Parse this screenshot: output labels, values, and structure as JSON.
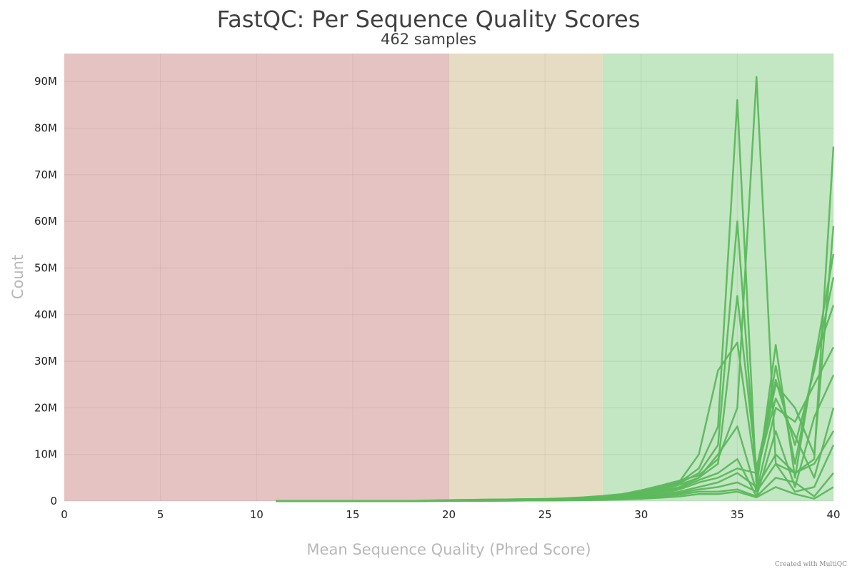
{
  "chart_data": {
    "type": "line",
    "title": "FastQC: Per Sequence Quality Scores",
    "subtitle": "462 samples",
    "xlabel": "Mean Sequence Quality (Phred Score)",
    "ylabel": "Count",
    "xlim": [
      0,
      40
    ],
    "ylim": [
      0,
      96000000
    ],
    "x_ticks": [
      "0",
      "5",
      "10",
      "15",
      "20",
      "25",
      "30",
      "35",
      "40"
    ],
    "x_tick_values": [
      0,
      5,
      10,
      15,
      20,
      25,
      30,
      35,
      40
    ],
    "y_ticks": [
      "0",
      "10M",
      "20M",
      "30M",
      "40M",
      "50M",
      "60M",
      "70M",
      "80M",
      "90M"
    ],
    "y_tick_values": [
      0,
      10000000,
      20000000,
      30000000,
      40000000,
      50000000,
      60000000,
      70000000,
      80000000,
      90000000
    ],
    "grid": true,
    "legend": "none",
    "series_count": 462,
    "line_color": "#5cb85c",
    "bands": [
      {
        "from": 0,
        "to": 20,
        "color": "#e6c3c3",
        "status": "fail"
      },
      {
        "from": 20,
        "to": 28,
        "color": "#e6dcc3",
        "status": "warn"
      },
      {
        "from": 28,
        "to": 40,
        "color": "#c3e6c3",
        "status": "pass"
      }
    ],
    "x": [
      11,
      12,
      13,
      14,
      15,
      16,
      17,
      18,
      19,
      20,
      21,
      22,
      23,
      24,
      25,
      26,
      27,
      28,
      29,
      30,
      31,
      32,
      33,
      34,
      35,
      36,
      37,
      38,
      39,
      40
    ],
    "series": [
      {
        "values": [
          0,
          0,
          0,
          0,
          0,
          0,
          0,
          0,
          100000,
          200000,
          250000,
          300000,
          350000,
          400000,
          450000,
          600000,
          800000,
          1100000,
          1500000,
          2300000,
          3300000,
          4400000,
          5500000,
          9000000,
          20000000,
          91000000,
          8000000,
          6000000,
          9000000,
          76000000
        ]
      },
      {
        "values": [
          0,
          0,
          0,
          0,
          0,
          0,
          0,
          0,
          100000,
          200000,
          250000,
          300000,
          350000,
          400000,
          450000,
          550000,
          700000,
          900000,
          1300000,
          2000000,
          3000000,
          4200000,
          10000000,
          28000000,
          34000000,
          5000000,
          25000000,
          20000000,
          10000000,
          59000000
        ]
      },
      {
        "values": [
          0,
          0,
          0,
          0,
          0,
          0,
          0,
          0,
          50000,
          150000,
          200000,
          250000,
          300000,
          350000,
          400000,
          500000,
          650000,
          850000,
          1200000,
          1900000,
          2800000,
          4000000,
          7000000,
          16000000,
          86000000,
          3000000,
          33500000,
          5000000,
          30000000,
          42000000
        ]
      },
      {
        "values": [
          0,
          0,
          0,
          0,
          0,
          0,
          0,
          0,
          50000,
          100000,
          150000,
          200000,
          250000,
          300000,
          350000,
          450000,
          600000,
          800000,
          1100000,
          1700000,
          2500000,
          3800000,
          6000000,
          12000000,
          60000000,
          4000000,
          29000000,
          8000000,
          29500000,
          53000000
        ]
      },
      {
        "values": [
          0,
          0,
          0,
          0,
          0,
          0,
          0,
          0,
          50000,
          100000,
          150000,
          200000,
          250000,
          300000,
          350000,
          400000,
          550000,
          700000,
          1000000,
          1500000,
          2200000,
          3500000,
          5000000,
          8000000,
          44000000,
          7000000,
          26000000,
          12000000,
          28000000,
          48000000
        ]
      },
      {
        "values": [
          0,
          0,
          0,
          0,
          0,
          0,
          0,
          0,
          50000,
          100000,
          120000,
          150000,
          200000,
          250000,
          300000,
          350000,
          450000,
          600000,
          900000,
          1300000,
          2000000,
          3000000,
          5000000,
          10000000,
          16000000,
          2000000,
          20000000,
          17000000,
          25000000,
          33000000
        ]
      },
      {
        "values": [
          0,
          0,
          0,
          0,
          0,
          0,
          0,
          0,
          30000,
          80000,
          100000,
          120000,
          150000,
          200000,
          250000,
          300000,
          400000,
          550000,
          800000,
          1200000,
          1800000,
          2800000,
          4500000,
          6000000,
          9000000,
          1000000,
          15000000,
          3000000,
          18000000,
          27000000
        ]
      },
      {
        "values": [
          0,
          0,
          0,
          0,
          0,
          0,
          0,
          0,
          30000,
          80000,
          100000,
          120000,
          150000,
          200000,
          250000,
          300000,
          400000,
          500000,
          700000,
          1000000,
          1500000,
          2500000,
          4000000,
          5000000,
          7000000,
          6000000,
          22000000,
          14000000,
          5000000,
          20000000
        ]
      },
      {
        "values": [
          0,
          0,
          0,
          0,
          0,
          0,
          0,
          0,
          20000,
          50000,
          80000,
          100000,
          120000,
          150000,
          200000,
          250000,
          300000,
          400000,
          600000,
          900000,
          1300000,
          2000000,
          3000000,
          4000000,
          6000000,
          3000000,
          10000000,
          6000000,
          8000000,
          15000000
        ]
      },
      {
        "values": [
          0,
          0,
          0,
          0,
          0,
          0,
          0,
          0,
          20000,
          50000,
          80000,
          100000,
          120000,
          150000,
          200000,
          250000,
          300000,
          400000,
          500000,
          800000,
          1100000,
          1700000,
          2500000,
          3000000,
          4000000,
          2000000,
          8000000,
          2000000,
          3000000,
          12000000
        ]
      },
      {
        "values": [
          0,
          0,
          0,
          0,
          0,
          0,
          0,
          0,
          10000,
          30000,
          50000,
          60000,
          80000,
          100000,
          120000,
          150000,
          200000,
          300000,
          400000,
          600000,
          900000,
          1400000,
          2000000,
          2000000,
          2500000,
          1000000,
          5000000,
          4000000,
          1000000,
          6000000
        ]
      },
      {
        "values": [
          0,
          0,
          0,
          0,
          0,
          0,
          0,
          0,
          10000,
          30000,
          50000,
          60000,
          80000,
          100000,
          120000,
          150000,
          200000,
          250000,
          350000,
          500000,
          700000,
          1000000,
          1500000,
          1500000,
          2000000,
          800000,
          3000000,
          1500000,
          500000,
          3000000
        ]
      }
    ]
  }
}
